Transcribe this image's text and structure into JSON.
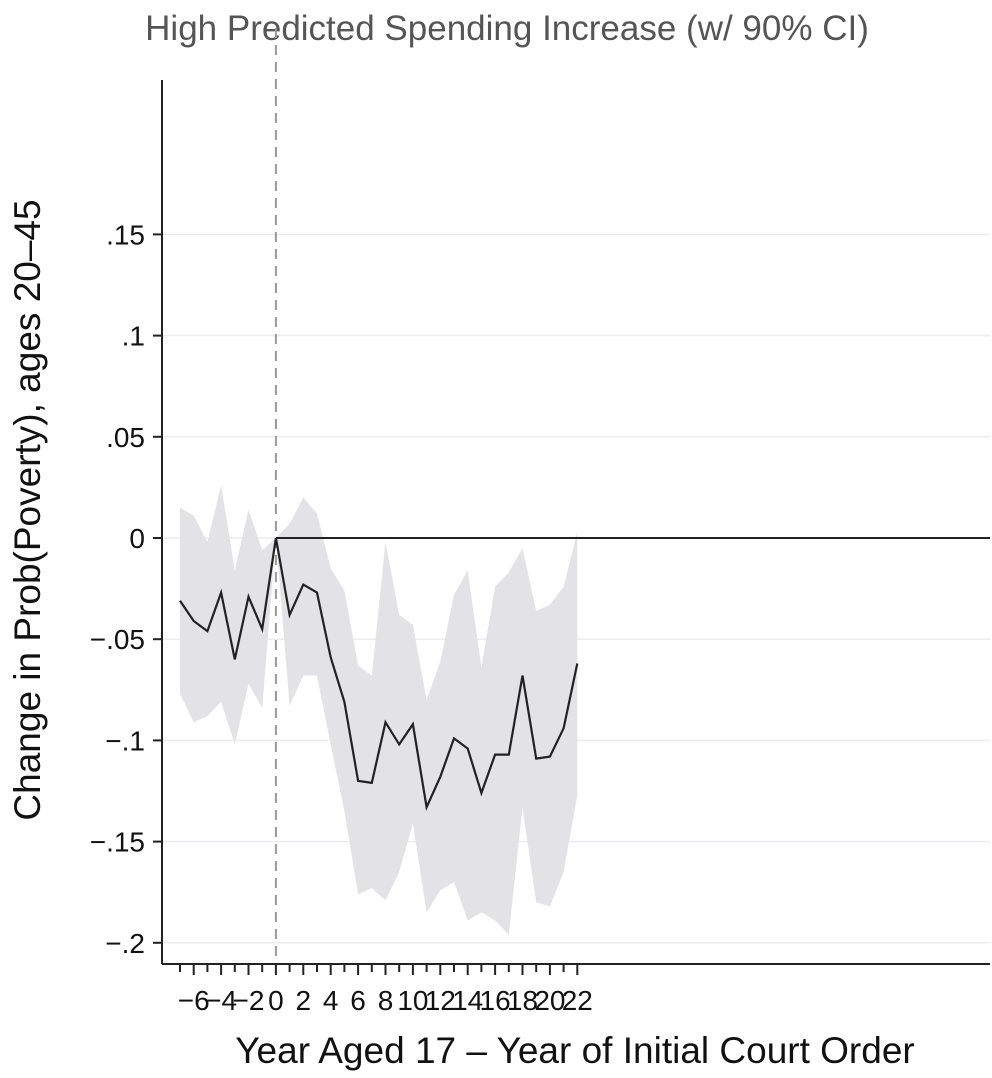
{
  "chart_data": {
    "type": "line",
    "title": "High Predicted Spending Increase (w/ 90% CI)",
    "xlabel": "Year Aged 17 – Year of Initial Court Order",
    "ylabel": "Change in Prob(Poverty), ages 20–45",
    "xlim": [
      -7.5,
      22.7
    ],
    "ylim": [
      -0.207,
      0.225
    ],
    "grid": true,
    "x_ticks": [
      -6,
      -4,
      -2,
      0,
      2,
      4,
      6,
      8,
      10,
      12,
      14,
      16,
      18,
      20,
      22
    ],
    "x_tick_labels": [
      "−6",
      "−4",
      "−2",
      "0",
      "2",
      "4",
      "6",
      "8",
      "10",
      "12",
      "14",
      "16",
      "18",
      "20",
      "22"
    ],
    "x_minor_ticks": [
      -7,
      -5,
      -3,
      -1,
      1,
      3,
      5,
      7,
      9,
      11,
      13,
      15,
      17,
      19,
      21
    ],
    "y_ticks": [
      0.15,
      0.1,
      0.05,
      0,
      -0.05,
      -0.1,
      -0.15,
      -0.2
    ],
    "y_tick_labels": [
      ".15",
      ".1",
      ".05",
      "0",
      "−.05",
      "−.1",
      "−.15",
      "−.2"
    ],
    "reference_lines": {
      "horizontal_y": 0,
      "vertical_x": 0
    },
    "x": [
      -7,
      -6,
      -5,
      -4,
      -3,
      -2,
      -1,
      0,
      1,
      2,
      3,
      4,
      5,
      6,
      7,
      8,
      9,
      10,
      11,
      12,
      13,
      14,
      15,
      16,
      17,
      18,
      19,
      20,
      21,
      22
    ],
    "series": [
      {
        "values": [
          -0.031,
          -0.041,
          -0.046,
          -0.027,
          -0.06,
          -0.029,
          -0.045,
          0.0,
          -0.038,
          -0.023,
          -0.027,
          -0.059,
          -0.081,
          -0.12,
          -0.121,
          -0.091,
          -0.102,
          -0.092,
          -0.133,
          -0.118,
          -0.099,
          -0.104,
          -0.126,
          -0.107,
          -0.107,
          -0.068,
          -0.109,
          -0.108,
          -0.094,
          -0.062
        ],
        "ci_lower": [
          -0.077,
          -0.091,
          -0.088,
          -0.081,
          -0.102,
          -0.072,
          -0.084,
          0.0,
          -0.083,
          -0.068,
          -0.068,
          -0.102,
          -0.135,
          -0.176,
          -0.173,
          -0.179,
          -0.165,
          -0.141,
          -0.185,
          -0.174,
          -0.17,
          -0.189,
          -0.185,
          -0.189,
          -0.196,
          -0.133,
          -0.18,
          -0.182,
          -0.165,
          -0.127
        ],
        "ci_upper": [
          0.015,
          0.011,
          -0.002,
          0.026,
          -0.016,
          0.014,
          -0.006,
          0.0,
          0.007,
          0.02,
          0.012,
          -0.015,
          -0.026,
          -0.063,
          -0.068,
          -0.002,
          -0.038,
          -0.043,
          -0.08,
          -0.061,
          -0.028,
          -0.016,
          -0.064,
          -0.024,
          -0.017,
          -0.005,
          -0.036,
          -0.033,
          -0.024,
          0.003
        ]
      }
    ],
    "colors": {
      "line": "#222222",
      "ci_band": "#e3e3e6",
      "grid": "#ececf0",
      "axis": "#222222",
      "vline": "#999999",
      "title": "#555555"
    }
  }
}
